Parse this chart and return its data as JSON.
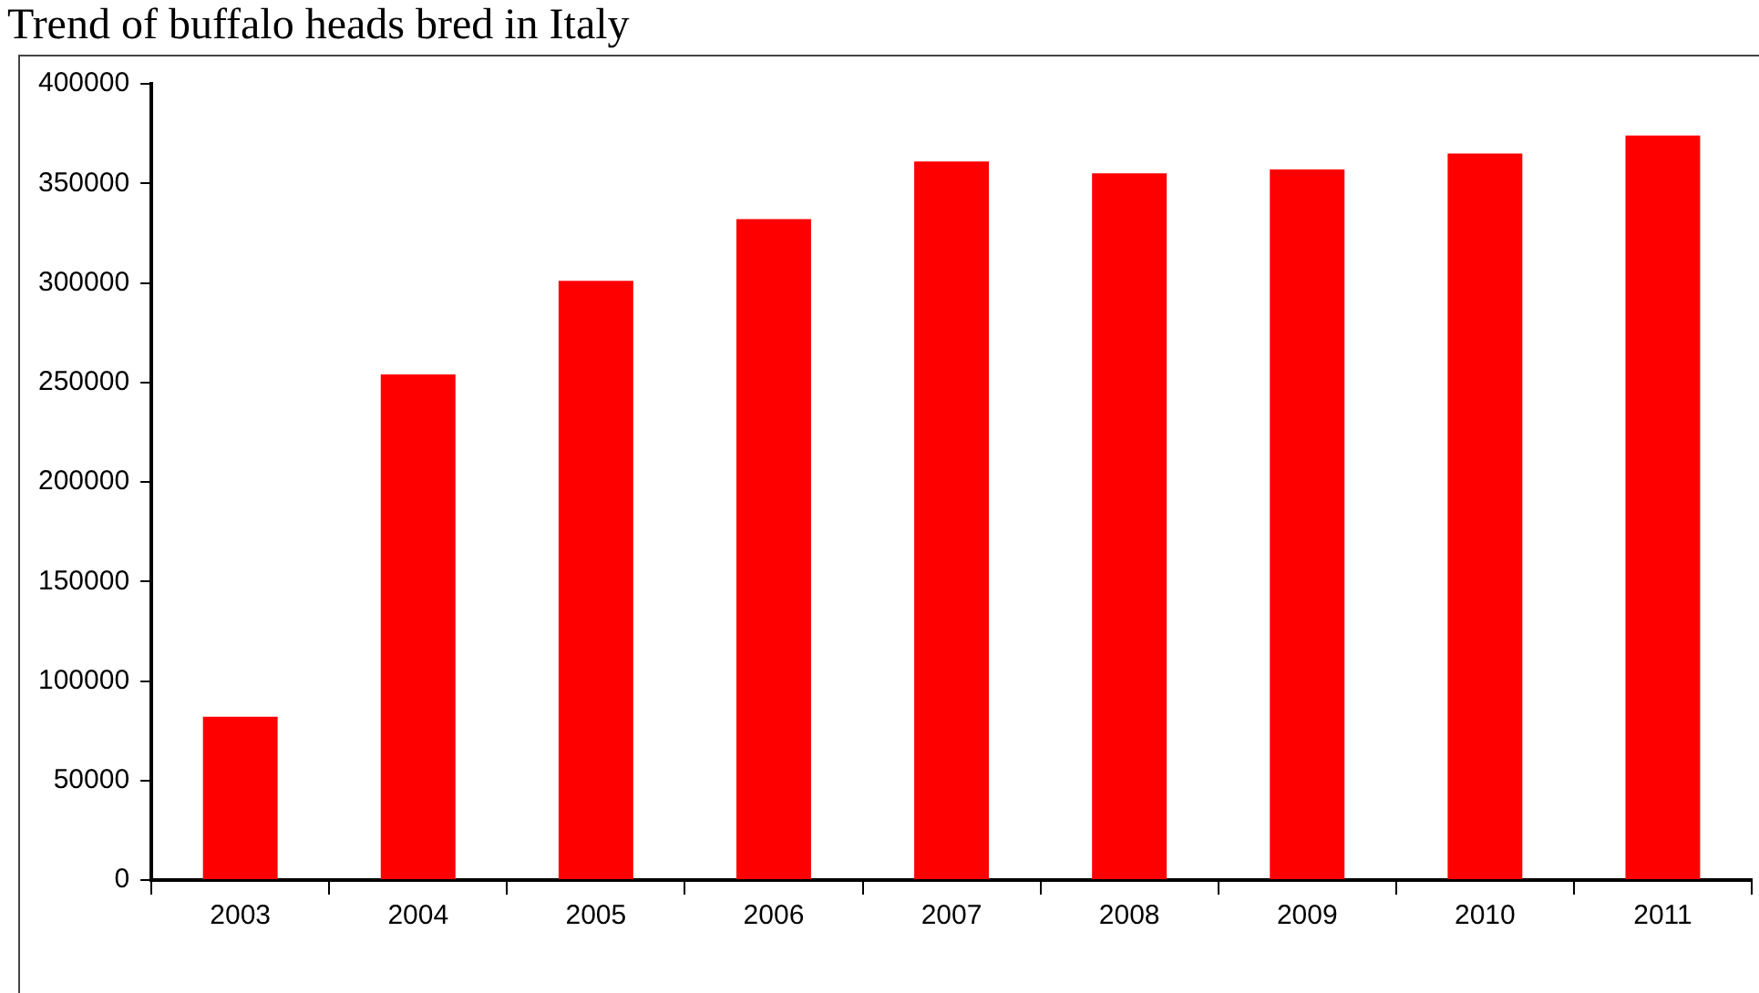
{
  "chart_data": {
    "type": "bar",
    "title": "Trend of buffalo heads bred in Italy",
    "categories": [
      "2003",
      "2004",
      "2005",
      "2006",
      "2007",
      "2008",
      "2009",
      "2010",
      "2011"
    ],
    "values": [
      82000,
      254000,
      301000,
      332000,
      361000,
      355000,
      357000,
      365000,
      374000
    ],
    "color": "#ff0000",
    "ylim": [
      0,
      400000
    ],
    "yticks": [
      0,
      50000,
      100000,
      150000,
      200000,
      250000,
      300000,
      350000,
      400000
    ],
    "grid": false,
    "legend": false
  }
}
